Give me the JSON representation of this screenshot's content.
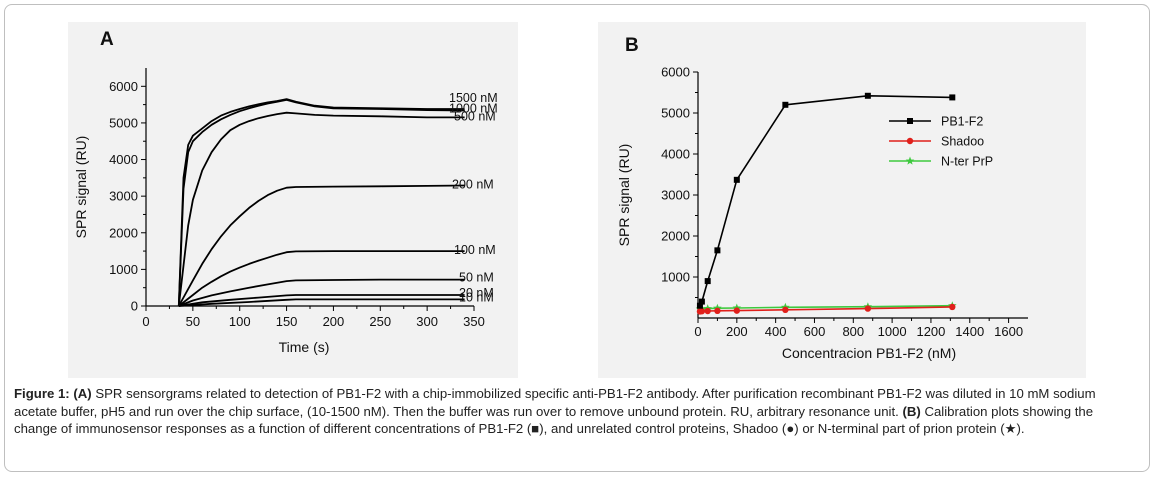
{
  "figure": {
    "caption": {
      "label": "Figure 1:",
      "a_tag": "(A)",
      "a_text": " SPR sensorgrams related to detection of PB1-F2 with a chip-immobilized specific anti-PB1-F2 antibody. After purification recombinant PB1-F2 was diluted in 10 mM sodium acetate buffer, pH5 and run over the chip surface, (10-1500 nM). Then the buffer was run over to remove unbound protein. RU, arbitrary resonance unit. ",
      "b_tag": "(B)",
      "b_text_1": " Calibration plots showing the change of immunosensor responses as a function of different concentrations of PB1-F2 (",
      "square_symbol": "■",
      "b_text_2": "), and unrelated control proteins, Shadoo (",
      "circle_symbol": "●",
      "b_text_3": ") or N-terminal part of prion protein (",
      "star_symbol": "★",
      "b_text_4": ")."
    }
  },
  "chart_data": [
    {
      "panel": "A",
      "type": "line",
      "title": "",
      "xlabel": "Time  (s)",
      "ylabel": "SPR signal (RU)",
      "xlim": [
        0,
        350
      ],
      "ylim": [
        0,
        6500
      ],
      "xticks": [
        0,
        50,
        100,
        150,
        200,
        250,
        300,
        350
      ],
      "yticks": [
        0,
        1000,
        2000,
        3000,
        4000,
        5000,
        6000
      ],
      "grid": false,
      "series": [
        {
          "name": "1500 nM",
          "label": "1500 nM",
          "x": [
            35,
            40,
            45,
            50,
            60,
            70,
            80,
            90,
            100,
            110,
            120,
            130,
            140,
            150,
            160,
            180,
            200,
            250,
            300,
            340
          ],
          "y": [
            0,
            3500,
            4400,
            4650,
            4850,
            5050,
            5200,
            5300,
            5380,
            5450,
            5510,
            5560,
            5600,
            5650,
            5580,
            5470,
            5420,
            5400,
            5380,
            5380
          ]
        },
        {
          "name": "1000 nM",
          "label": "1000 nM",
          "x": [
            35,
            40,
            45,
            50,
            60,
            70,
            80,
            90,
            100,
            110,
            120,
            130,
            140,
            150,
            160,
            180,
            200,
            250,
            300,
            340
          ],
          "y": [
            0,
            3200,
            4200,
            4500,
            4750,
            4950,
            5100,
            5220,
            5320,
            5400,
            5470,
            5530,
            5580,
            5630,
            5560,
            5450,
            5400,
            5380,
            5350,
            5340
          ]
        },
        {
          "name": "500 nM",
          "label": "500 nM",
          "x": [
            35,
            45,
            50,
            60,
            70,
            80,
            90,
            100,
            110,
            120,
            130,
            140,
            150,
            160,
            180,
            200,
            250,
            300,
            340
          ],
          "y": [
            0,
            2200,
            2900,
            3700,
            4200,
            4550,
            4800,
            4950,
            5050,
            5130,
            5190,
            5240,
            5280,
            5260,
            5220,
            5200,
            5180,
            5150,
            5150
          ]
        },
        {
          "name": "200 nM",
          "label": "200 nM",
          "x": [
            35,
            50,
            60,
            70,
            80,
            90,
            100,
            110,
            120,
            130,
            140,
            150,
            160,
            200,
            250,
            300,
            340
          ],
          "y": [
            0,
            700,
            1150,
            1550,
            1900,
            2200,
            2450,
            2680,
            2870,
            3030,
            3150,
            3230,
            3250,
            3260,
            3270,
            3280,
            3290
          ]
        },
        {
          "name": "100 nM",
          "label": "100 nM",
          "x": [
            35,
            50,
            60,
            70,
            80,
            90,
            100,
            110,
            120,
            130,
            140,
            150,
            160,
            200,
            250,
            300,
            340
          ],
          "y": [
            0,
            300,
            500,
            660,
            810,
            940,
            1050,
            1150,
            1240,
            1320,
            1400,
            1470,
            1490,
            1500,
            1500,
            1500,
            1500
          ]
        },
        {
          "name": "50 nM",
          "label": "50 nM",
          "x": [
            35,
            50,
            70,
            90,
            110,
            130,
            150,
            160,
            200,
            250,
            300,
            340
          ],
          "y": [
            0,
            150,
            290,
            400,
            500,
            590,
            680,
            700,
            710,
            720,
            720,
            720
          ]
        },
        {
          "name": "20 nM",
          "label": "20 nM",
          "x": [
            35,
            60,
            90,
            120,
            150,
            160,
            200,
            250,
            300,
            340
          ],
          "y": [
            0,
            100,
            170,
            230,
            290,
            300,
            300,
            300,
            300,
            300
          ]
        },
        {
          "name": "10 nM",
          "label": "10 nM",
          "x": [
            35,
            70,
            110,
            150,
            160,
            200,
            250,
            300,
            340
          ],
          "y": [
            0,
            60,
            110,
            170,
            180,
            180,
            180,
            180,
            180
          ]
        }
      ]
    },
    {
      "panel": "B",
      "type": "line",
      "title": "",
      "xlabel": "Concentracion PB1-F2 (nM)",
      "ylabel": "SPR signal (RU)",
      "xlim": [
        0,
        1700
      ],
      "ylim": [
        0,
        6000
      ],
      "xticks": [
        0,
        200,
        400,
        600,
        800,
        1000,
        1200,
        1400,
        1600
      ],
      "yticks": [
        1000,
        2000,
        3000,
        4000,
        5000,
        6000
      ],
      "grid": false,
      "legend_position": "upper-right",
      "series": [
        {
          "name": "PB1-F2",
          "color": "#000000",
          "marker": "square",
          "x": [
            10,
            20,
            50,
            100,
            200,
            450,
            875,
            1310
          ],
          "y": [
            300,
            400,
            900,
            1650,
            3370,
            5200,
            5420,
            5380
          ]
        },
        {
          "name": "Shadoo",
          "color": "#e0201b",
          "marker": "circle",
          "x": [
            10,
            20,
            50,
            100,
            200,
            450,
            875,
            1310
          ],
          "y": [
            160,
            165,
            170,
            175,
            180,
            200,
            230,
            270
          ]
        },
        {
          "name": "N-ter PrP",
          "color": "#3ec93e",
          "marker": "star",
          "x": [
            10,
            20,
            50,
            100,
            200,
            450,
            875,
            1310
          ],
          "y": [
            220,
            225,
            230,
            240,
            245,
            260,
            275,
            300
          ]
        }
      ]
    }
  ]
}
